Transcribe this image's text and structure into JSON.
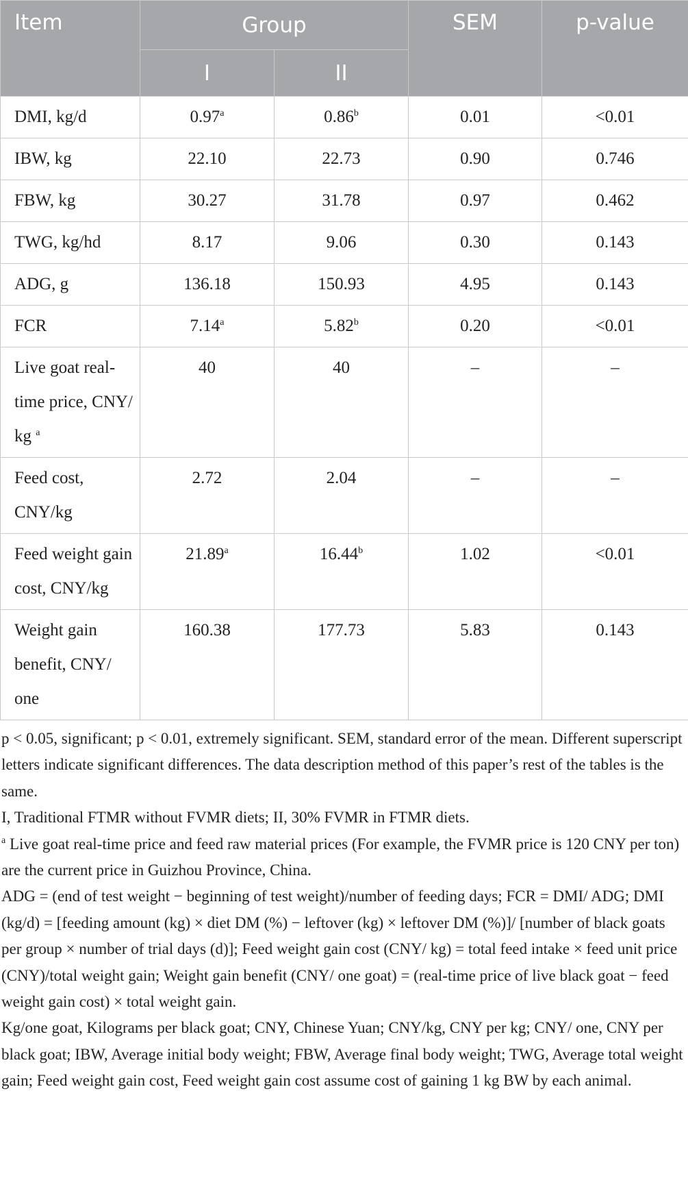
{
  "table": {
    "header": {
      "item": "Item",
      "group": "Group",
      "sem": "SEM",
      "pvalue": "p-value",
      "groups": [
        "I",
        "II"
      ]
    },
    "rows": [
      [
        "DMI, kg/d",
        {
          "text": "0.97",
          "sup": "a"
        },
        {
          "text": "0.86",
          "sup": "b"
        },
        "0.01",
        "<0.01"
      ],
      [
        "IBW, kg",
        "22.10",
        "22.73",
        "0.90",
        "0.746"
      ],
      [
        "FBW, kg",
        "30.27",
        "31.78",
        "0.97",
        "0.462"
      ],
      [
        "TWG, kg/hd",
        "8.17",
        "9.06",
        "0.30",
        "0.143"
      ],
      [
        "ADG, g",
        "136.18",
        "150.93",
        "4.95",
        "0.143"
      ],
      [
        "FCR",
        {
          "text": "7.14",
          "sup": "a"
        },
        {
          "text": "5.82",
          "sup": "b"
        },
        "0.20",
        "<0.01"
      ],
      [
        {
          "text": "Live goat real-time price, CNY/ kg ",
          "sup": "a"
        },
        "40",
        "40",
        "–",
        "–"
      ],
      [
        "Feed cost, CNY/kg",
        "2.72",
        "2.04",
        "–",
        "–"
      ],
      [
        "Feed weight gain cost, CNY/kg",
        {
          "text": "21.89",
          "sup": "a"
        },
        {
          "text": "16.44",
          "sup": "b"
        },
        "1.02",
        "<0.01"
      ],
      [
        "Weight gain benefit, CNY/ one",
        "160.38",
        "177.73",
        "5.83",
        "0.143"
      ]
    ]
  },
  "footnotes": [
    "p < 0.05, significant; p < 0.01, extremely significant. SEM, standard error of the mean. Different superscript letters indicate significant differences. The data description method of this paper’s rest of the tables is the same.",
    "I, Traditional FTMR without FVMR diets; II, 30% FVMR in FTMR diets.",
    {
      "sup": "a",
      "text": " Live goat real-time price and feed raw material prices (For example, the FVMR price is 120 CNY per ton) are the current price in Guizhou Province, China."
    },
    "ADG = (end of test weight − beginning of test weight)/number of feeding days; FCR = DMI/ ADG; DMI (kg/d) = [feeding amount (kg) × diet DM (%) − leftover (kg) × leftover DM (%)]/ [number of black goats per group × number of trial days (d)]; Feed weight gain cost (CNY/ kg) = total feed intake × feed unit price (CNY)/total weight gain; Weight gain benefit (CNY/ one goat) = (real-time price of live black goat − feed weight gain cost) × total weight gain.",
    "Kg/one goat, Kilograms per black goat; CNY, Chinese Yuan; CNY/kg, CNY per kg; CNY/ one, CNY per black goat; IBW, Average initial body weight; FBW, Average final body weight; TWG, Average total weight gain; Feed weight gain cost, Feed weight gain cost assume cost of gaining 1 kg BW by each animal."
  ]
}
